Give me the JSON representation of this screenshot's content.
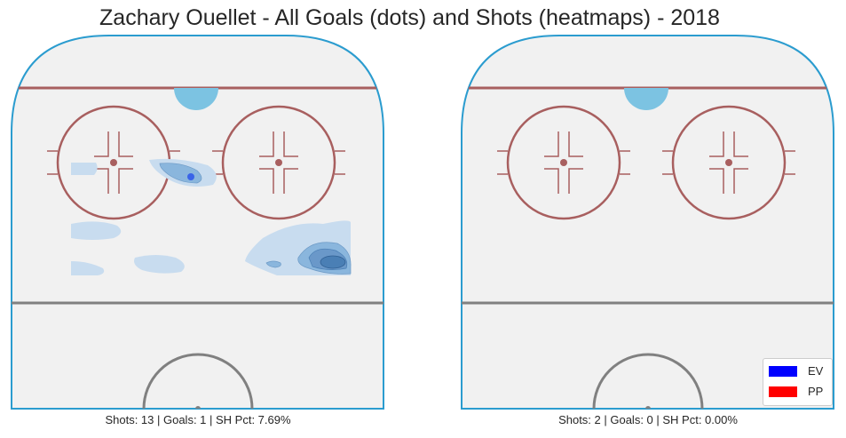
{
  "title": "Zachary Ouellet - All Goals (dots) and Shots (heatmaps) - 2018",
  "chart_data": [
    {
      "type": "heatmap",
      "panel": "left",
      "caption": "Shots: 13 | Goals: 1 | SH Pct: 7.69%",
      "goals": [
        {
          "strength": "EV",
          "count": 1
        }
      ]
    },
    {
      "type": "heatmap",
      "panel": "right",
      "caption": "Shots: 2 | Goals: 0 | SH Pct: 0.00%",
      "goals": []
    }
  ],
  "legend": {
    "placement": "lower-right",
    "items": [
      {
        "label": "EV",
        "color": "#0000ff"
      },
      {
        "label": "PP",
        "color": "#ff0000"
      }
    ]
  },
  "colors": {
    "rink_board": "#2b9ccf",
    "faceoff_red": "#a85f5f",
    "goal_line": "#a85f5f",
    "blue_crease": "#7cc3e2",
    "center_line": "#808080",
    "ice": "#f1f1f1",
    "heat_light": "#c8dcef",
    "heat_mid": "#8ab6dd",
    "heat_dark": "#4a7fb5",
    "goal_dot": "#3a64e8"
  }
}
